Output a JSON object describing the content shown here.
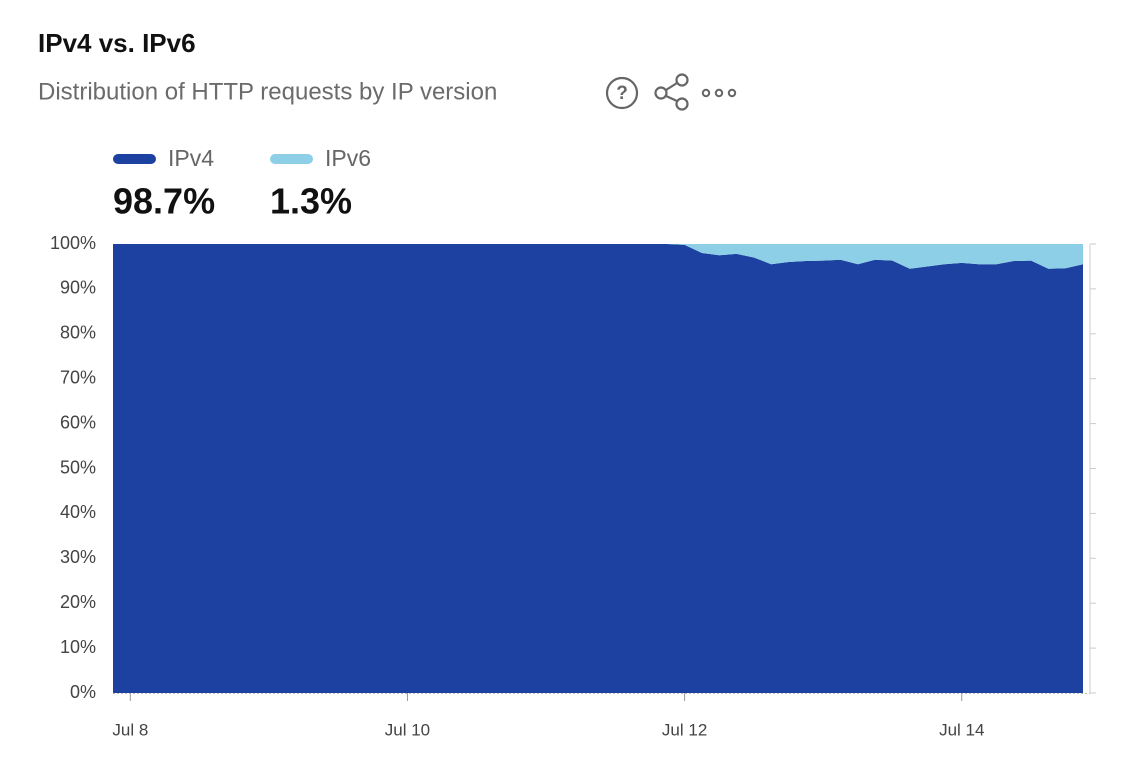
{
  "chart_data": {
    "type": "stacked-area",
    "title": "IPv4 vs. IPv6",
    "subtitle": "Distribution of HTTP requests by IP version",
    "categories": [
      null,
      "Jul 8",
      null,
      null,
      null,
      null,
      null,
      null,
      null,
      null,
      null,
      null,
      null,
      null,
      null,
      null,
      null,
      "Jul 10",
      null,
      null,
      null,
      null,
      null,
      null,
      null,
      null,
      null,
      null,
      null,
      null,
      null,
      null,
      null,
      "Jul 12",
      null,
      null,
      null,
      null,
      null,
      null,
      null,
      null,
      null,
      null,
      null,
      null,
      null,
      null,
      null,
      "Jul 14",
      null,
      null,
      null,
      null,
      null,
      null,
      null
    ],
    "series": [
      {
        "name": "IPv4",
        "color": "#1d41a0",
        "share": 98.7,
        "share_label": "98.7%",
        "values": [
          100,
          100,
          100,
          100,
          100,
          100,
          100,
          100,
          100,
          100,
          100,
          100,
          100,
          100,
          100,
          100,
          100,
          100,
          100,
          100,
          100,
          100,
          100,
          100,
          100,
          100,
          100,
          100,
          100,
          100,
          100,
          100,
          100,
          99.8,
          98,
          97.5,
          97.8,
          97,
          95.5,
          96,
          96.2,
          96.3,
          96.5,
          95.5,
          96.5,
          96.3,
          94.5,
          95,
          95.5,
          95.8,
          95.5,
          95.5,
          96.2,
          96.3,
          94.5,
          94.6,
          95.5
        ]
      },
      {
        "name": "IPv6",
        "color": "#8dcfe6",
        "share": 1.3,
        "share_label": "1.3%",
        "values": [
          0,
          0,
          0,
          0,
          0,
          0,
          0,
          0,
          0,
          0,
          0,
          0,
          0,
          0,
          0,
          0,
          0,
          0,
          0,
          0,
          0,
          0,
          0,
          0,
          0,
          0,
          0,
          0,
          0,
          0,
          0,
          0,
          0,
          0.2,
          2,
          2.5,
          2.2,
          3,
          4.5,
          4,
          3.8,
          3.7,
          3.5,
          4.5,
          3.5,
          3.7,
          5.5,
          5,
          4.5,
          4.2,
          4.5,
          4.5,
          3.8,
          3.7,
          5.5,
          5.4,
          4.5
        ]
      }
    ],
    "ylim": [
      0,
      100
    ],
    "yticks": [
      {
        "value": 0,
        "label": "0%"
      },
      {
        "value": 10,
        "label": "10%"
      },
      {
        "value": 20,
        "label": "20%"
      },
      {
        "value": 30,
        "label": "30%"
      },
      {
        "value": 40,
        "label": "40%"
      },
      {
        "value": 50,
        "label": "50%"
      },
      {
        "value": 60,
        "label": "60%"
      },
      {
        "value": 70,
        "label": "70%"
      },
      {
        "value": 80,
        "label": "80%"
      },
      {
        "value": 90,
        "label": "90%"
      },
      {
        "value": 100,
        "label": "100%"
      }
    ]
  }
}
